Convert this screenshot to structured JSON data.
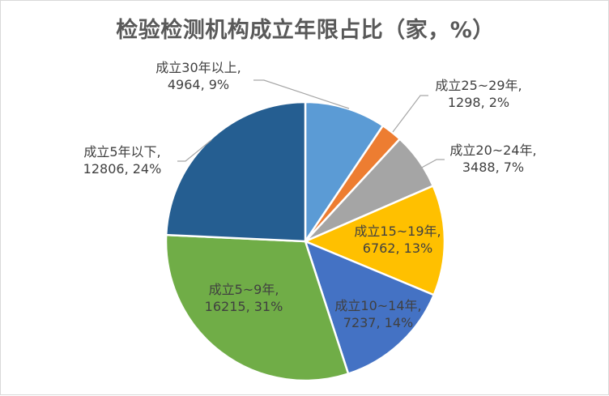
{
  "chart_data": {
    "type": "pie",
    "title": "检验检测机构成立年限占比（家，%）",
    "series": [
      {
        "name": "成立30年以上",
        "line1": "成立30年以上,",
        "line2": "4964, 9%",
        "value": 4964,
        "percent": 9,
        "color": "#5b9bd5"
      },
      {
        "name": "成立25~29年",
        "line1": "成立25~29年,",
        "line2": "1298, 2%",
        "value": 1298,
        "percent": 2,
        "color": "#ed7d31"
      },
      {
        "name": "成立20~24年",
        "line1": "成立20~24年,",
        "line2": "3488, 7%",
        "value": 3488,
        "percent": 7,
        "color": "#a5a5a5"
      },
      {
        "name": "成立15~19年",
        "line1": "成立15~19年,",
        "line2": "6762, 13%",
        "value": 6762,
        "percent": 13,
        "color": "#ffc000"
      },
      {
        "name": "成立10~14年",
        "line1": "成立10~14年,",
        "line2": "7237, 14%",
        "value": 7237,
        "percent": 14,
        "color": "#4472c4"
      },
      {
        "name": "成立5~9年",
        "line1": "成立5~9年,",
        "line2": "16215, 31%",
        "value": 16215,
        "percent": 31,
        "color": "#70ad47"
      },
      {
        "name": "成立5年以下",
        "line1": "成立5年以下,",
        "line2": "12806, 24%",
        "value": 12806,
        "percent": 24,
        "color": "#255e91"
      }
    ],
    "legend": "none",
    "start_angle": "12 o'clock, clockwise"
  }
}
